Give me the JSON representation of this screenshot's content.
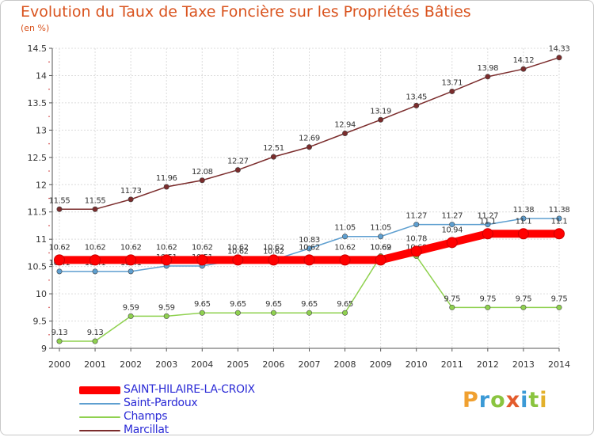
{
  "chart_data": {
    "type": "line",
    "title": "Evolution du Taux de Taxe Foncière sur les Propriétés Bâties",
    "ylabel": "(en %)",
    "xlabel": "",
    "categories": [
      "2000",
      "2001",
      "2002",
      "2003",
      "2004",
      "2005",
      "2006",
      "2007",
      "2008",
      "2009",
      "2010",
      "2011",
      "2012",
      "2013",
      "2014"
    ],
    "ylim": [
      9,
      14.5
    ],
    "yticks": [
      "9",
      "9.5",
      "10",
      "10.5",
      "11",
      "11.5",
      "12",
      "12.5",
      "13",
      "13.5",
      "14",
      "14.5"
    ],
    "series": [
      {
        "name": "SAINT-HILAIRE-LA-CROIX",
        "color": "#ff0000",
        "values": [
          10.62,
          10.62,
          10.62,
          10.62,
          10.62,
          10.62,
          10.62,
          10.62,
          10.62,
          10.62,
          10.78,
          10.94,
          11.1,
          11.1,
          11.1
        ],
        "labels": [
          "10.62",
          "10.62",
          "10.62",
          "10.62",
          "10.62",
          "10.62",
          "10.62",
          "10.62",
          "10.62",
          "10.62",
          "10.78",
          "10.94",
          "11.1",
          "11.1",
          "11.1"
        ]
      },
      {
        "name": "Saint-Pardoux",
        "color": "#5e9fd0",
        "values": [
          10.41,
          10.41,
          10.41,
          10.51,
          10.51,
          10.62,
          10.62,
          10.83,
          11.05,
          11.05,
          11.27,
          11.27,
          11.27,
          11.38,
          11.38
        ],
        "labels": [
          "10.41",
          "10.41",
          "10.41",
          "10.51",
          "10.51",
          "10.62",
          "10.62",
          "10.83",
          "11.05",
          "11.05",
          "11.27",
          "11.27",
          "11.27",
          "11.38",
          "11.38"
        ]
      },
      {
        "name": "Champs",
        "color": "#8fd14f",
        "values": [
          9.13,
          9.13,
          9.59,
          9.59,
          9.65,
          9.65,
          9.65,
          9.65,
          9.65,
          10.69,
          10.69,
          9.75,
          9.75,
          9.75,
          9.75
        ],
        "labels": [
          "9.13",
          "9.13",
          "9.59",
          "9.59",
          "9.65",
          "9.65",
          "9.65",
          "9.65",
          "9.65",
          "10.69",
          "10.69",
          "9.75",
          "9.75",
          "9.75",
          "9.75"
        ]
      },
      {
        "name": "Marcillat",
        "color": "#7b2c2c",
        "values": [
          11.55,
          11.55,
          11.73,
          11.96,
          12.08,
          12.27,
          12.51,
          12.69,
          12.94,
          13.19,
          13.45,
          13.71,
          13.98,
          14.12,
          14.33
        ],
        "labels": [
          "11.55",
          "11.55",
          "11.73",
          "11.96",
          "12.08",
          "12.27",
          "12.51",
          "12.69",
          "12.94",
          "13.19",
          "13.45",
          "13.71",
          "13.98",
          "14.12",
          "14.33"
        ]
      }
    ],
    "legend_position": "bottom-left"
  },
  "logo": {
    "letters": [
      "P",
      "r",
      "o",
      "x",
      "i",
      "t",
      "i"
    ],
    "colors": [
      "#f0a030",
      "#3c9ad6",
      "#8ac43f",
      "#e35b2c",
      "#3c9ad6",
      "#8ac43f",
      "#e3b12c"
    ]
  }
}
